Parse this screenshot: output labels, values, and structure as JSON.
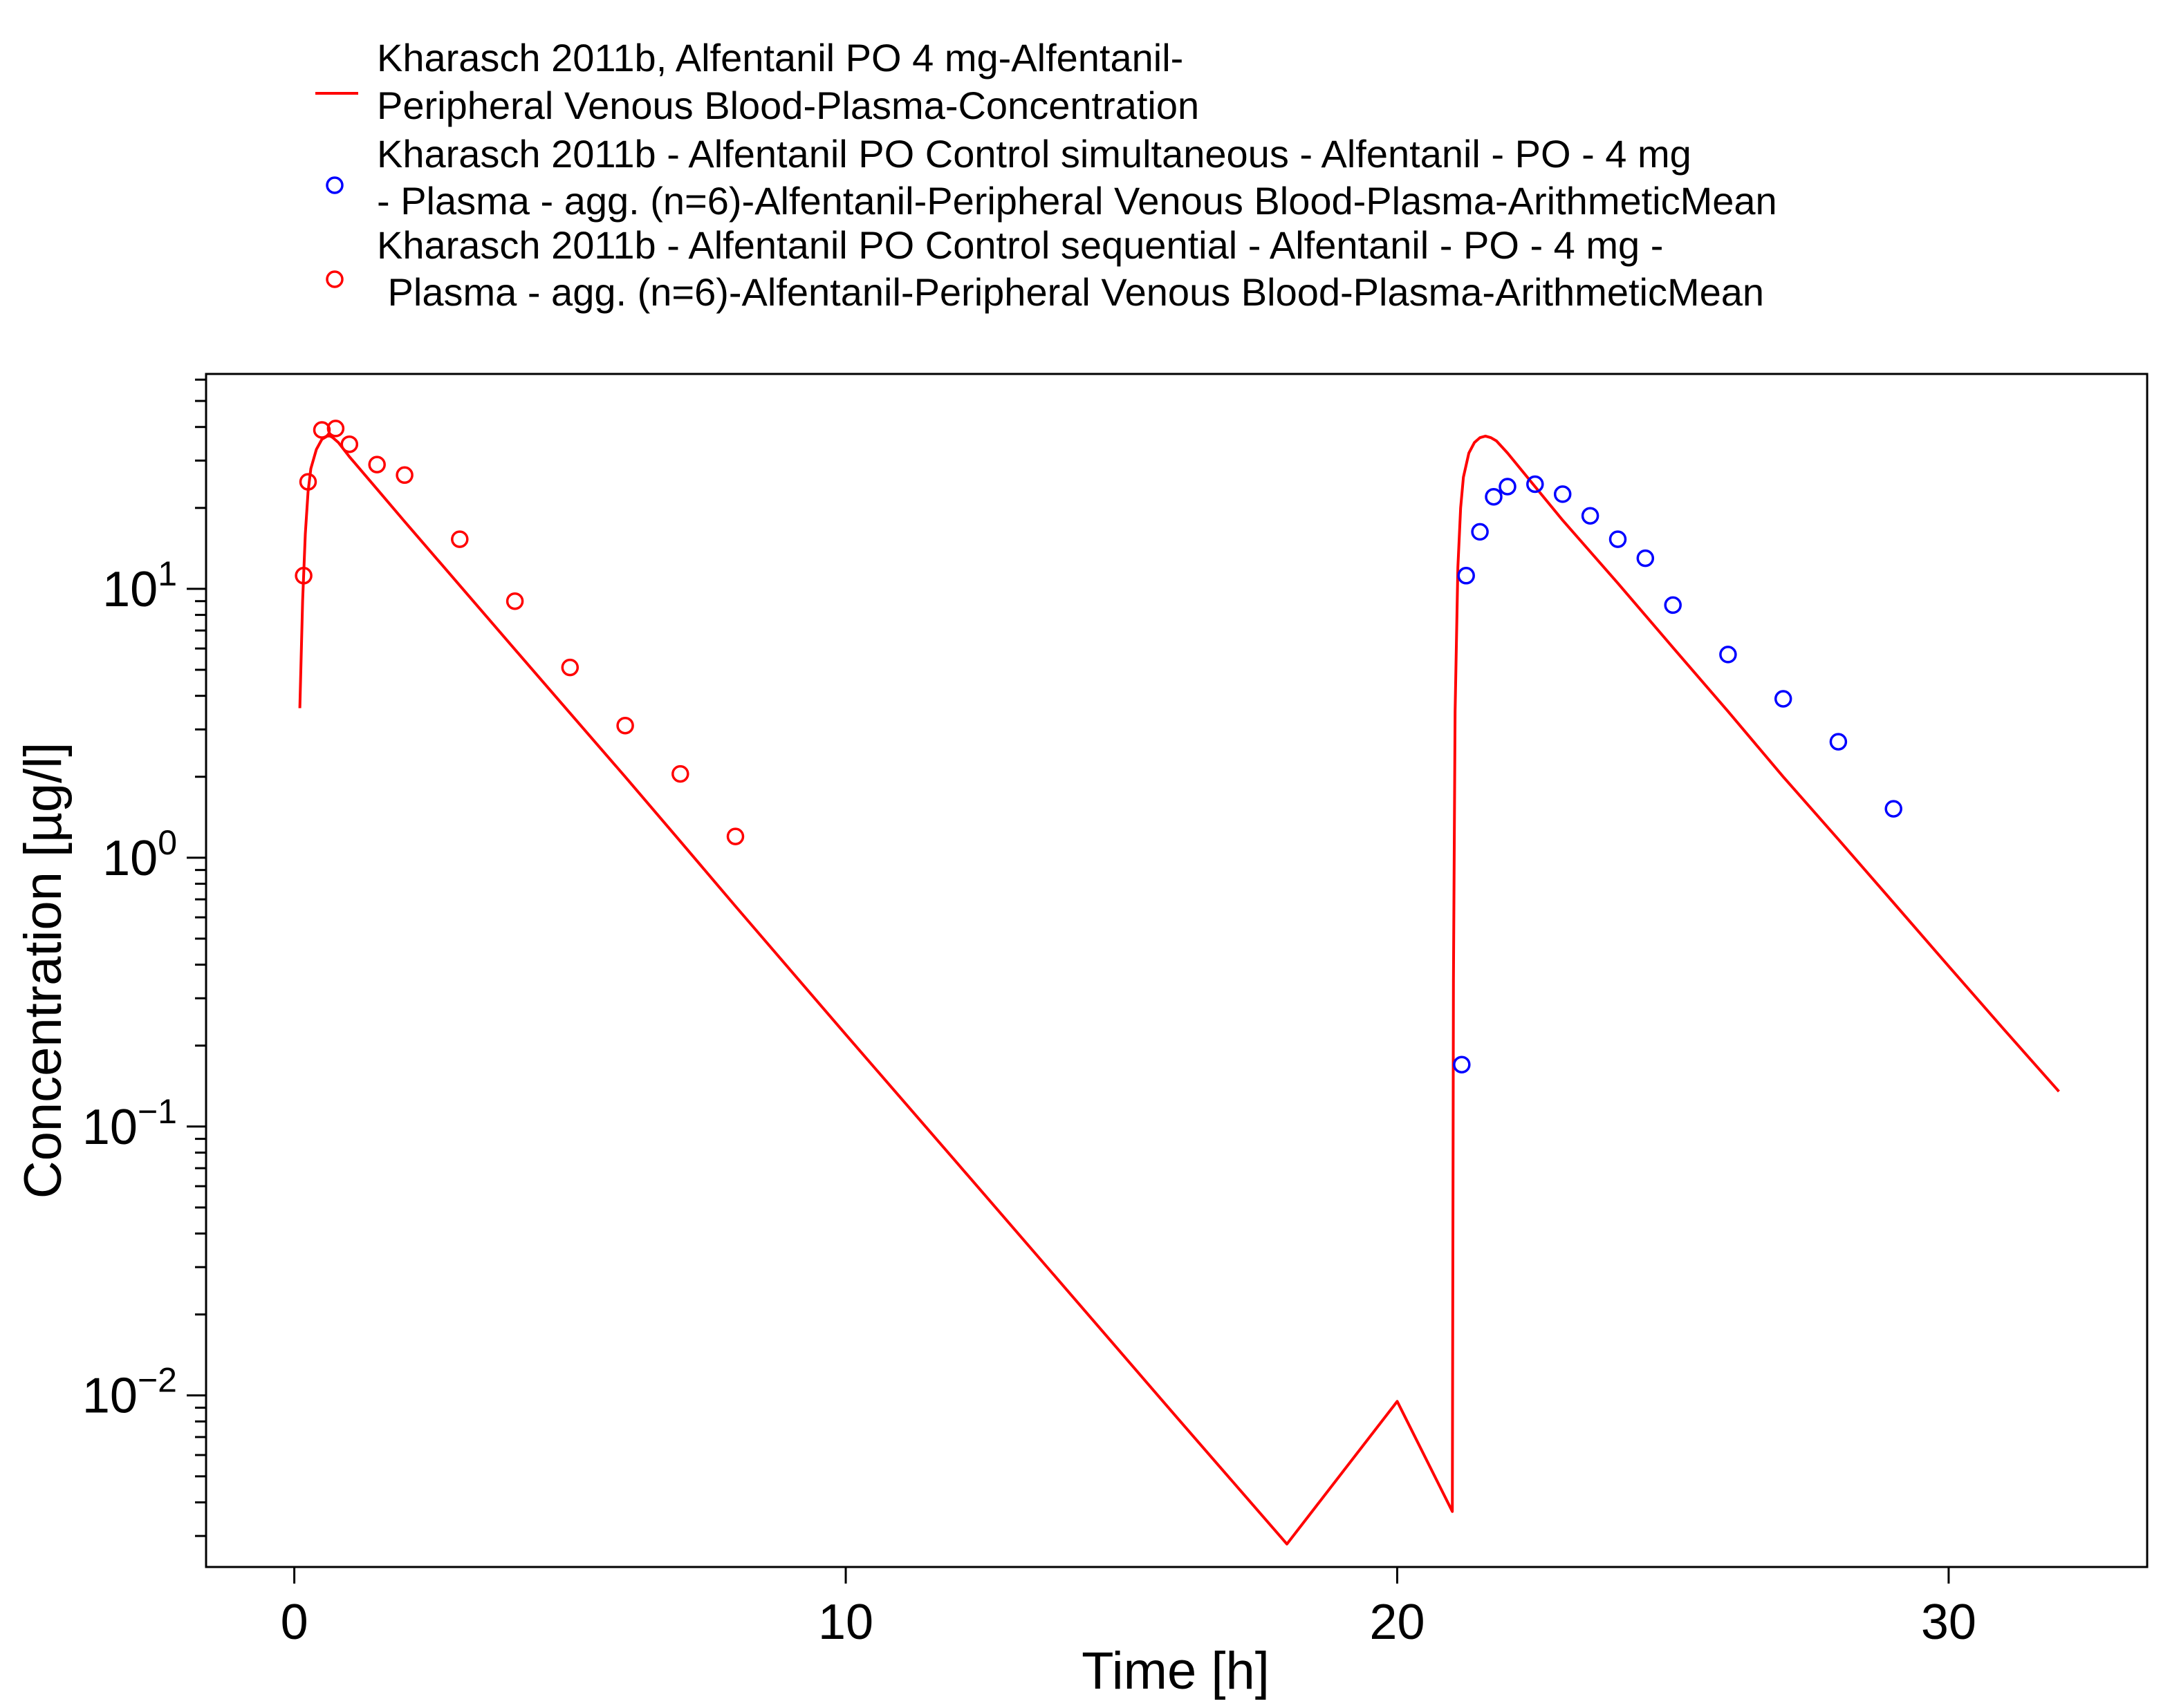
{
  "chart_data": {
    "type": "line",
    "title": "",
    "xlabel": "Time [h]",
    "ylabel": "Concentration [µg/l]",
    "xlim": [
      -1.6,
      33.6
    ],
    "ylim": [
      0.0023,
      63
    ],
    "y_scale": "log",
    "grid": false,
    "legend_position": "top",
    "x_ticks": [
      0,
      10,
      20,
      30
    ],
    "x_tick_labels": [
      "0",
      "10",
      "20",
      "30"
    ],
    "y_ticks": [
      {
        "value": 10,
        "base": "10",
        "exp": "1"
      },
      {
        "value": 1,
        "base": "10",
        "exp": "0"
      },
      {
        "value": 0.1,
        "base": "10",
        "exp": "−1"
      },
      {
        "value": 0.01,
        "base": "10",
        "exp": "−2"
      }
    ],
    "series": [
      {
        "name": "Kharasch 2011b, Alfentanil PO 4 mg-Alfentanil-Peripheral Venous Blood-Plasma-Concentration",
        "legend_lines": [
          "Kharasch 2011b, Alfentanil PO 4 mg-Alfentanil-",
          "Peripheral Venous Blood-Plasma-Concentration"
        ],
        "kind": "line",
        "color": "#ff0000",
        "x": [
          0.1,
          0.15,
          0.2,
          0.25,
          0.3,
          0.4,
          0.5,
          0.6,
          0.65,
          0.7,
          0.8,
          1.0,
          1.5,
          2.0,
          3.0,
          4.0,
          5.0,
          6.0,
          7.0,
          8.0,
          10.0,
          12.0,
          14.0,
          16.0,
          18.0,
          20.0,
          21.0,
          21.02,
          21.05,
          21.1,
          21.15,
          21.2,
          21.3,
          21.4,
          21.5,
          21.6,
          21.7,
          21.8,
          22.0,
          22.5,
          23.0,
          24.0,
          25.0,
          26.0,
          27.0,
          28.0,
          29.0,
          30.0,
          31.0,
          32.0
        ],
        "y": [
          3.6,
          9.0,
          16.0,
          23.0,
          28.0,
          33.0,
          36.0,
          37.0,
          37.0,
          36.5,
          35.0,
          31.0,
          23.5,
          17.8,
          10.3,
          5.95,
          3.45,
          2.0,
          1.15,
          0.66,
          0.22,
          0.074,
          0.0248,
          0.0083,
          0.0028,
          0.0095,
          0.0037,
          0.35,
          3.5,
          12.0,
          20.0,
          26.0,
          32.0,
          35.0,
          36.5,
          37.0,
          36.5,
          35.5,
          32.0,
          24.0,
          18.0,
          10.5,
          6.05,
          3.5,
          2.0,
          1.17,
          0.68,
          0.395,
          0.23,
          0.135
        ]
      },
      {
        "name": "Kharasch 2011b - Alfentanil PO Control simultaneous - Alfentanil - PO - 4 mg - Plasma - agg. (n=6)-Alfentanil-Peripheral Venous Blood-Plasma-ArithmeticMean",
        "legend_lines": [
          "Kharasch 2011b - Alfentanil PO Control simultaneous - Alfentanil - PO - 4 mg",
          "- Plasma - agg. (n=6)-Alfentanil-Peripheral Venous Blood-Plasma-ArithmeticMean"
        ],
        "kind": "scatter",
        "color": "#0000ff",
        "x": [
          21.17,
          21.25,
          21.5,
          21.75,
          22.0,
          22.5,
          23.0,
          23.5,
          24.0,
          24.5,
          25.0,
          26.0,
          27.0,
          28.0,
          29.0
        ],
        "y": [
          0.17,
          11.2,
          16.3,
          22.0,
          24.0,
          24.5,
          22.5,
          18.7,
          15.3,
          13.0,
          8.7,
          5.7,
          3.9,
          2.7,
          1.52
        ]
      },
      {
        "name": "Kharasch 2011b - Alfentanil PO Control sequential - Alfentanil - PO - 4 mg - Plasma - agg. (n=6)-Alfentanil-Peripheral Venous Blood-Plasma-ArithmeticMean",
        "legend_lines": [
          "Kharasch 2011b - Alfentanil PO Control sequential - Alfentanil - PO - 4 mg -",
          " Plasma - agg. (n=6)-Alfentanil-Peripheral Venous Blood-Plasma-ArithmeticMean"
        ],
        "kind": "scatter",
        "color": "#ff0000",
        "x": [
          0.17,
          0.25,
          0.5,
          0.75,
          1.0,
          1.5,
          2.0,
          3.0,
          4.0,
          5.0,
          6.0,
          7.0,
          8.0
        ],
        "y": [
          11.2,
          25.0,
          39.0,
          39.5,
          34.5,
          29.0,
          26.5,
          15.3,
          9.0,
          5.1,
          3.1,
          2.05,
          1.2
        ]
      }
    ]
  }
}
